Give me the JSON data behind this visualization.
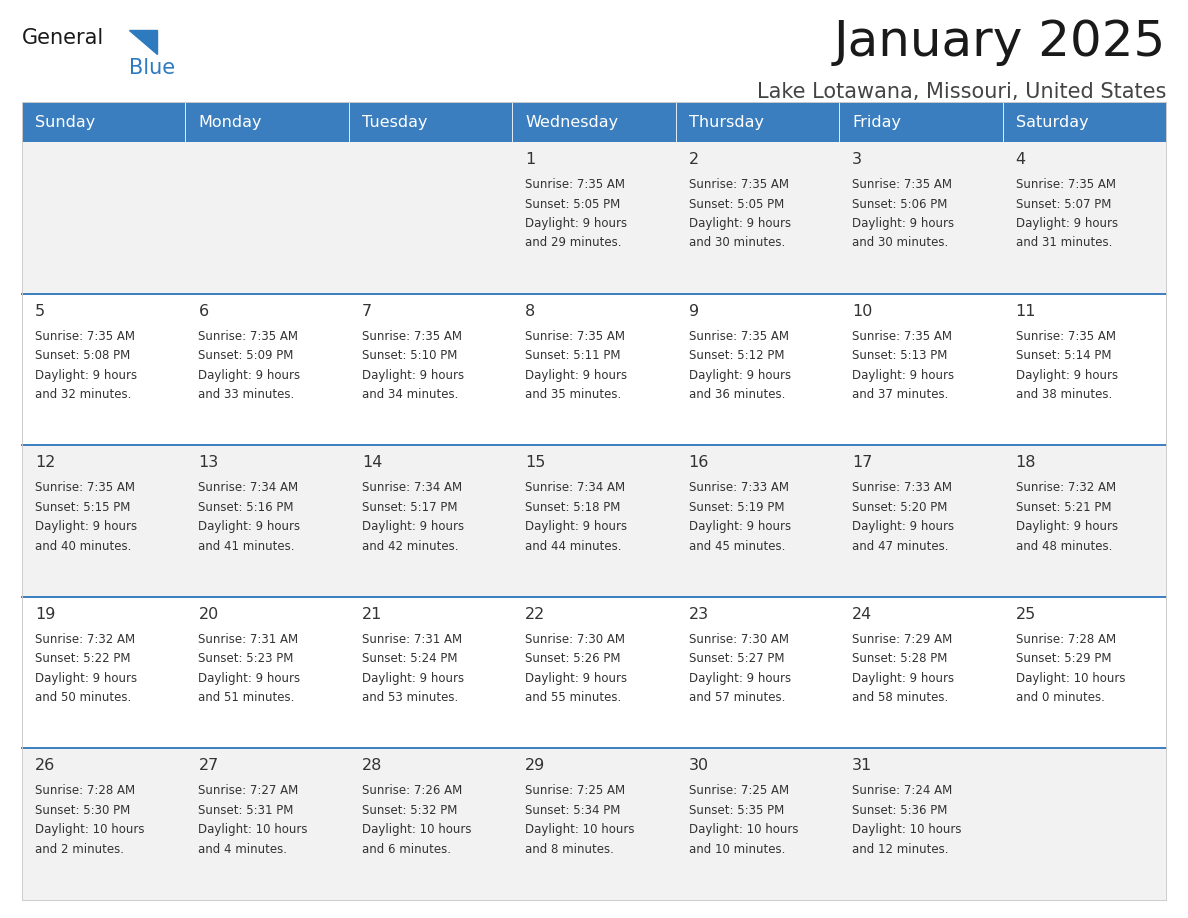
{
  "title": "January 2025",
  "subtitle": "Lake Lotawana, Missouri, United States",
  "header_bg": "#3a7ebf",
  "header_text_color": "#ffffff",
  "row_bg_odd": "#ffffff",
  "row_bg_even": "#f2f2f2",
  "cell_text_color": "#333333",
  "separator_color": "#3a7ebf",
  "days_of_week": [
    "Sunday",
    "Monday",
    "Tuesday",
    "Wednesday",
    "Thursday",
    "Friday",
    "Saturday"
  ],
  "weeks": [
    [
      {
        "day": "",
        "sunrise": "",
        "sunset": "",
        "daylight": ""
      },
      {
        "day": "",
        "sunrise": "",
        "sunset": "",
        "daylight": ""
      },
      {
        "day": "",
        "sunrise": "",
        "sunset": "",
        "daylight": ""
      },
      {
        "day": "1",
        "sunrise": "7:35 AM",
        "sunset": "5:05 PM",
        "daylight_h": "9",
        "daylight_m": "29"
      },
      {
        "day": "2",
        "sunrise": "7:35 AM",
        "sunset": "5:05 PM",
        "daylight_h": "9",
        "daylight_m": "30"
      },
      {
        "day": "3",
        "sunrise": "7:35 AM",
        "sunset": "5:06 PM",
        "daylight_h": "9",
        "daylight_m": "30"
      },
      {
        "day": "4",
        "sunrise": "7:35 AM",
        "sunset": "5:07 PM",
        "daylight_h": "9",
        "daylight_m": "31"
      }
    ],
    [
      {
        "day": "5",
        "sunrise": "7:35 AM",
        "sunset": "5:08 PM",
        "daylight_h": "9",
        "daylight_m": "32"
      },
      {
        "day": "6",
        "sunrise": "7:35 AM",
        "sunset": "5:09 PM",
        "daylight_h": "9",
        "daylight_m": "33"
      },
      {
        "day": "7",
        "sunrise": "7:35 AM",
        "sunset": "5:10 PM",
        "daylight_h": "9",
        "daylight_m": "34"
      },
      {
        "day": "8",
        "sunrise": "7:35 AM",
        "sunset": "5:11 PM",
        "daylight_h": "9",
        "daylight_m": "35"
      },
      {
        "day": "9",
        "sunrise": "7:35 AM",
        "sunset": "5:12 PM",
        "daylight_h": "9",
        "daylight_m": "36"
      },
      {
        "day": "10",
        "sunrise": "7:35 AM",
        "sunset": "5:13 PM",
        "daylight_h": "9",
        "daylight_m": "37"
      },
      {
        "day": "11",
        "sunrise": "7:35 AM",
        "sunset": "5:14 PM",
        "daylight_h": "9",
        "daylight_m": "38"
      }
    ],
    [
      {
        "day": "12",
        "sunrise": "7:35 AM",
        "sunset": "5:15 PM",
        "daylight_h": "9",
        "daylight_m": "40"
      },
      {
        "day": "13",
        "sunrise": "7:34 AM",
        "sunset": "5:16 PM",
        "daylight_h": "9",
        "daylight_m": "41"
      },
      {
        "day": "14",
        "sunrise": "7:34 AM",
        "sunset": "5:17 PM",
        "daylight_h": "9",
        "daylight_m": "42"
      },
      {
        "day": "15",
        "sunrise": "7:34 AM",
        "sunset": "5:18 PM",
        "daylight_h": "9",
        "daylight_m": "44"
      },
      {
        "day": "16",
        "sunrise": "7:33 AM",
        "sunset": "5:19 PM",
        "daylight_h": "9",
        "daylight_m": "45"
      },
      {
        "day": "17",
        "sunrise": "7:33 AM",
        "sunset": "5:20 PM",
        "daylight_h": "9",
        "daylight_m": "47"
      },
      {
        "day": "18",
        "sunrise": "7:32 AM",
        "sunset": "5:21 PM",
        "daylight_h": "9",
        "daylight_m": "48"
      }
    ],
    [
      {
        "day": "19",
        "sunrise": "7:32 AM",
        "sunset": "5:22 PM",
        "daylight_h": "9",
        "daylight_m": "50"
      },
      {
        "day": "20",
        "sunrise": "7:31 AM",
        "sunset": "5:23 PM",
        "daylight_h": "9",
        "daylight_m": "51"
      },
      {
        "day": "21",
        "sunrise": "7:31 AM",
        "sunset": "5:24 PM",
        "daylight_h": "9",
        "daylight_m": "53"
      },
      {
        "day": "22",
        "sunrise": "7:30 AM",
        "sunset": "5:26 PM",
        "daylight_h": "9",
        "daylight_m": "55"
      },
      {
        "day": "23",
        "sunrise": "7:30 AM",
        "sunset": "5:27 PM",
        "daylight_h": "9",
        "daylight_m": "57"
      },
      {
        "day": "24",
        "sunrise": "7:29 AM",
        "sunset": "5:28 PM",
        "daylight_h": "9",
        "daylight_m": "58"
      },
      {
        "day": "25",
        "sunrise": "7:28 AM",
        "sunset": "5:29 PM",
        "daylight_h": "10",
        "daylight_m": "0"
      }
    ],
    [
      {
        "day": "26",
        "sunrise": "7:28 AM",
        "sunset": "5:30 PM",
        "daylight_h": "10",
        "daylight_m": "2"
      },
      {
        "day": "27",
        "sunrise": "7:27 AM",
        "sunset": "5:31 PM",
        "daylight_h": "10",
        "daylight_m": "4"
      },
      {
        "day": "28",
        "sunrise": "7:26 AM",
        "sunset": "5:32 PM",
        "daylight_h": "10",
        "daylight_m": "6"
      },
      {
        "day": "29",
        "sunrise": "7:25 AM",
        "sunset": "5:34 PM",
        "daylight_h": "10",
        "daylight_m": "8"
      },
      {
        "day": "30",
        "sunrise": "7:25 AM",
        "sunset": "5:35 PM",
        "daylight_h": "10",
        "daylight_m": "10"
      },
      {
        "day": "31",
        "sunrise": "7:24 AM",
        "sunset": "5:36 PM",
        "daylight_h": "10",
        "daylight_m": "12"
      },
      {
        "day": "",
        "sunrise": "",
        "sunset": "",
        "daylight_h": "",
        "daylight_m": ""
      }
    ]
  ]
}
